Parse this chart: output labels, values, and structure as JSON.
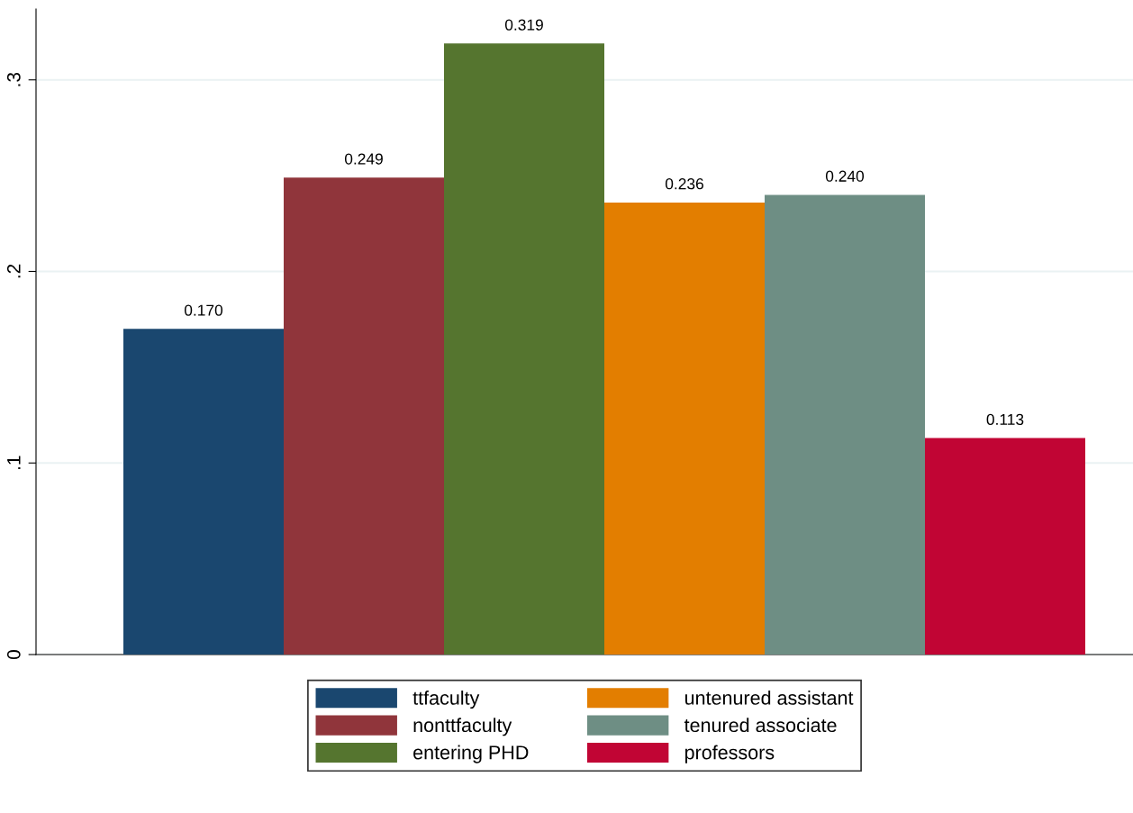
{
  "chart_data": {
    "type": "bar",
    "categories": [
      null
    ],
    "series": [
      {
        "name": "ttfaculty",
        "color": "#1a476f",
        "values": [
          0.17
        ],
        "value_labels": [
          "0.170"
        ]
      },
      {
        "name": "nonttfaculty",
        "color": "#90353b",
        "values": [
          0.249
        ],
        "value_labels": [
          "0.249"
        ]
      },
      {
        "name": "entering PHD",
        "color": "#55752f",
        "values": [
          0.319
        ],
        "value_labels": [
          "0.319"
        ]
      },
      {
        "name": "untenured assistant",
        "color": "#e37e00",
        "values": [
          0.236
        ],
        "value_labels": [
          "0.236"
        ]
      },
      {
        "name": "tenured associate",
        "color": "#6e8e84",
        "values": [
          0.24
        ],
        "value_labels": [
          "0.240"
        ]
      },
      {
        "name": "professors",
        "color": "#c10534",
        "values": [
          0.113
        ],
        "value_labels": [
          "0.113"
        ]
      }
    ],
    "ylim": [
      0,
      0.337
    ],
    "yticks": [
      0,
      {
        "value": 0.1,
        "label": ".1"
      },
      {
        "value": 0.2,
        "label": ".2"
      },
      {
        "value": 0.3,
        "label": ".3"
      }
    ],
    "grid": "y",
    "legend": "bottom"
  }
}
